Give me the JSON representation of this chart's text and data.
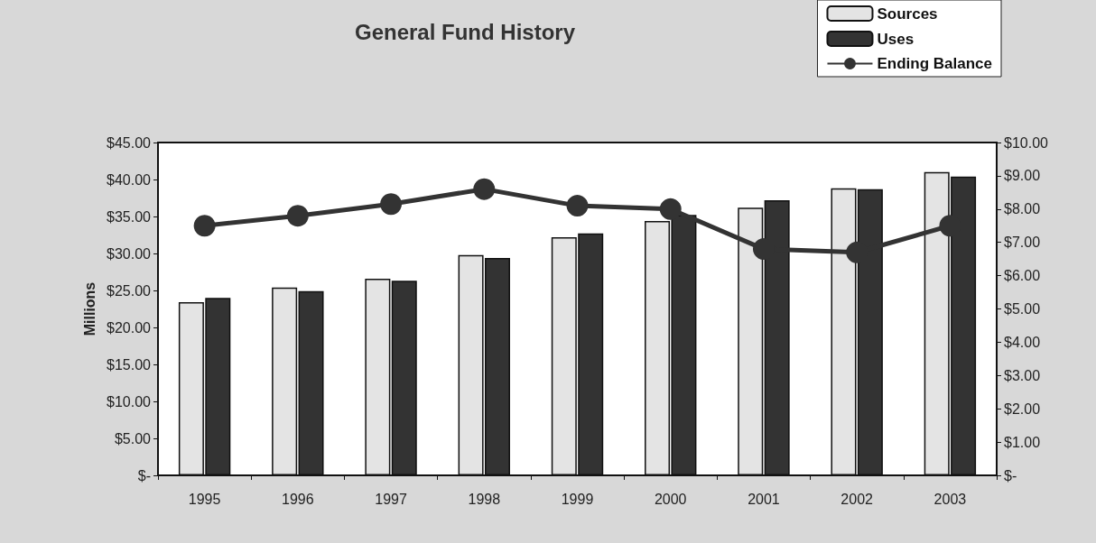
{
  "chart_data": {
    "type": "bar",
    "title": "General Fund History",
    "ylabel": "Millions",
    "categories": [
      "1995",
      "1996",
      "1997",
      "1998",
      "1999",
      "2000",
      "2001",
      "2002",
      "2003"
    ],
    "series": [
      {
        "name": "Sources",
        "color": "#e4e4e4",
        "values": [
          23.4,
          25.4,
          26.6,
          29.8,
          32.2,
          34.4,
          36.2,
          38.8,
          41.0
        ]
      },
      {
        "name": "Uses",
        "color": "#333333",
        "values": [
          24.0,
          24.9,
          26.3,
          29.4,
          32.7,
          35.2,
          37.2,
          38.7,
          40.4
        ]
      },
      {
        "name": "Ending Balance",
        "type": "line",
        "axis": "y2",
        "color": "#333333",
        "values": [
          7.5,
          7.8,
          8.15,
          8.6,
          8.1,
          8.0,
          6.8,
          6.7,
          7.5
        ]
      }
    ],
    "ylim": [
      0,
      45
    ],
    "yticks": [
      {
        "value": 0,
        "label": "$-"
      },
      {
        "value": 5,
        "label": "$5.00"
      },
      {
        "value": 10,
        "label": "$10.00"
      },
      {
        "value": 15,
        "label": "$15.00"
      },
      {
        "value": 20,
        "label": "$20.00"
      },
      {
        "value": 25,
        "label": "$25.00"
      },
      {
        "value": 30,
        "label": "$30.00"
      },
      {
        "value": 35,
        "label": "$35.00"
      },
      {
        "value": 40,
        "label": "$40.00"
      },
      {
        "value": 45,
        "label": "$45.00"
      }
    ],
    "y2lim": [
      0,
      10
    ],
    "y2ticks": [
      {
        "value": 0,
        "label": "$-"
      },
      {
        "value": 1,
        "label": "$1.00"
      },
      {
        "value": 2,
        "label": "$2.00"
      },
      {
        "value": 3,
        "label": "$3.00"
      },
      {
        "value": 4,
        "label": "$4.00"
      },
      {
        "value": 5,
        "label": "$5.00"
      },
      {
        "value": 6,
        "label": "$6.00"
      },
      {
        "value": 7,
        "label": "$7.00"
      },
      {
        "value": 8,
        "label": "$8.00"
      },
      {
        "value": 9,
        "label": "$9.00"
      },
      {
        "value": 10,
        "label": "$10.00"
      }
    ],
    "grid": false,
    "legend": "top right",
    "marker": "circle",
    "line_style": "solid"
  }
}
